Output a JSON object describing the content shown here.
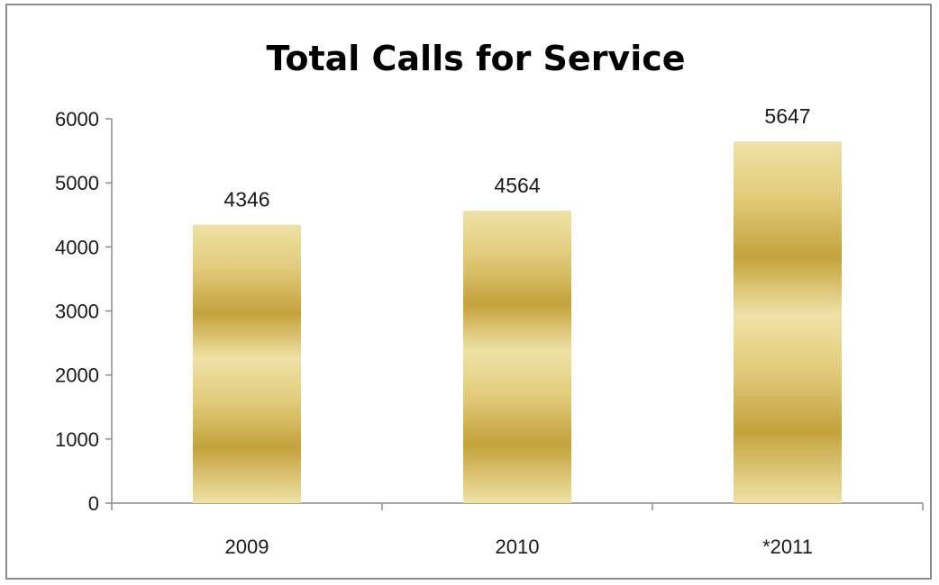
{
  "chart_data": {
    "type": "bar",
    "title": "Total Calls for Service",
    "xlabel": "",
    "ylabel": "",
    "categories": [
      "2009",
      "2010",
      "*2011"
    ],
    "values": [
      4346,
      4564,
      5647
    ],
    "data_labels": [
      "4346",
      "4564",
      "5647"
    ],
    "ylim": [
      0,
      6000
    ],
    "yticks": [
      0,
      1000,
      2000,
      3000,
      4000,
      5000,
      6000
    ],
    "grid": false,
    "legend": "none",
    "colors": {
      "bar_light": "#efe2a6",
      "bar_mid": "#e2cc7c",
      "bar_dark": "#c4a23c",
      "axis": "#8c8c8c"
    }
  }
}
